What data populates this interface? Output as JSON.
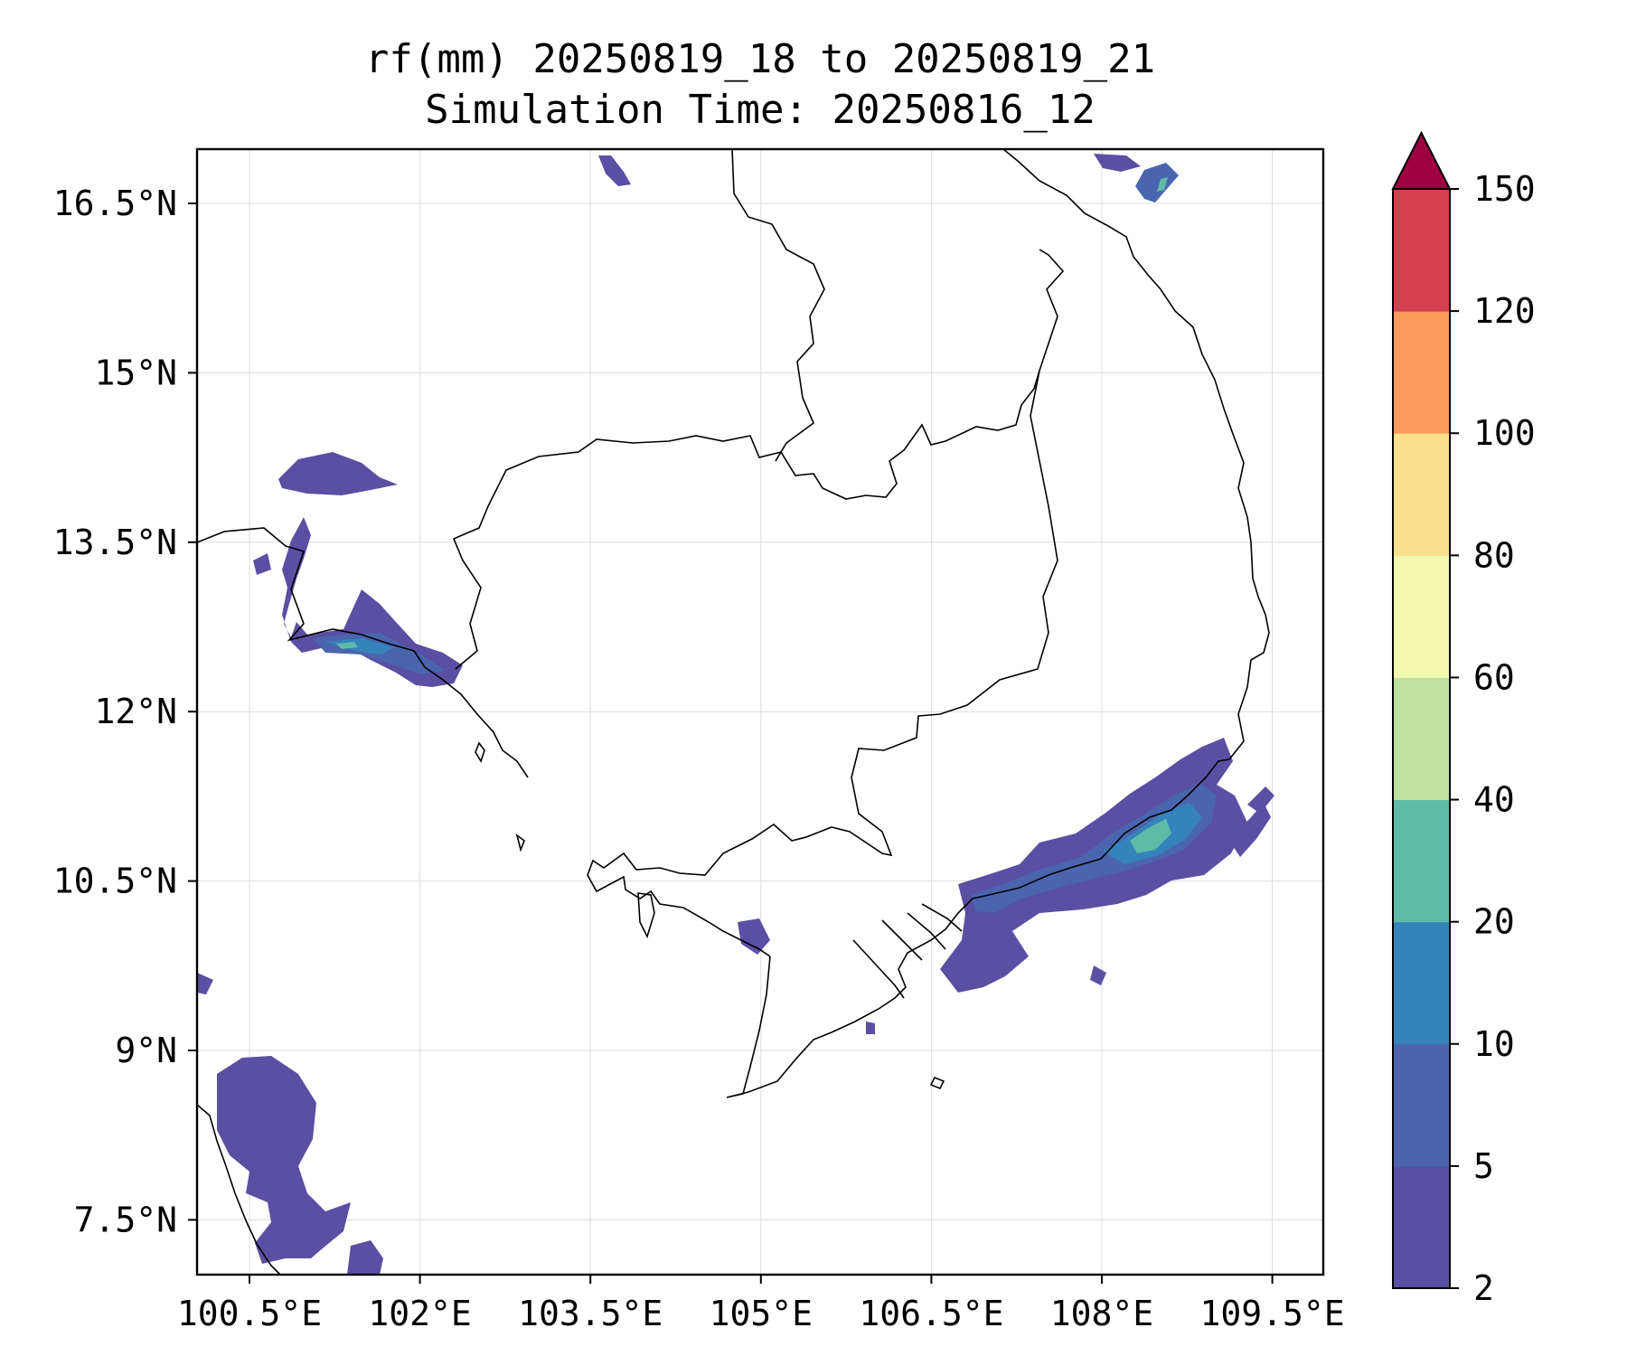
{
  "title": "rf(mm) 20250819_18 to 20250819_21",
  "subtitle": "Simulation Time: 20250816_12",
  "map": {
    "lon_ticks": [
      "100.5°E",
      "102°E",
      "103.5°E",
      "105°E",
      "106.5°E",
      "108°E",
      "109.5°E"
    ],
    "lat_ticks": [
      "16.5°N",
      "15°N",
      "13.5°N",
      "12°N",
      "10.5°N",
      "9°N",
      "7.5°N"
    ]
  },
  "colorbar": {
    "levels": [
      2,
      5,
      10,
      20,
      40,
      60,
      80,
      100,
      120,
      150
    ],
    "labels": [
      "2",
      "5",
      "10",
      "20",
      "40",
      "60",
      "80",
      "100",
      "120",
      "150"
    ],
    "colors": [
      "#5a4fa2",
      "#4a65ae",
      "#3682ba",
      "#5fbaa8",
      "#bde2a0",
      "#f2f8ae",
      "#fbdf8c",
      "#f99c5b",
      "#d4404f"
    ],
    "extend_color": "#9e0142"
  }
}
